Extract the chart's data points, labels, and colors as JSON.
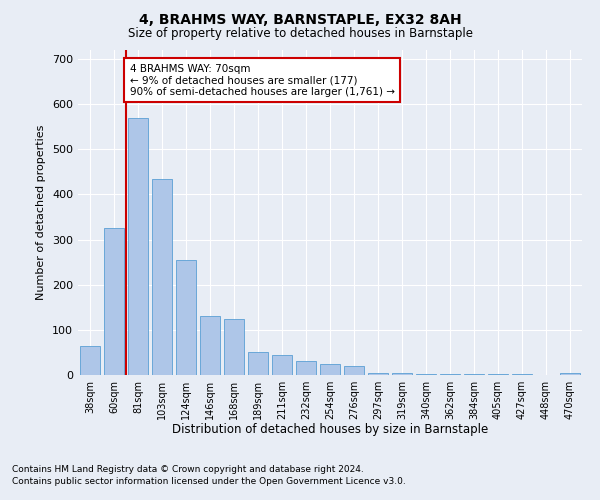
{
  "title1": "4, BRAHMS WAY, BARNSTAPLE, EX32 8AH",
  "title2": "Size of property relative to detached houses in Barnstaple",
  "xlabel": "Distribution of detached houses by size in Barnstaple",
  "ylabel": "Number of detached properties",
  "categories": [
    "38sqm",
    "60sqm",
    "81sqm",
    "103sqm",
    "124sqm",
    "146sqm",
    "168sqm",
    "189sqm",
    "211sqm",
    "232sqm",
    "254sqm",
    "276sqm",
    "297sqm",
    "319sqm",
    "340sqm",
    "362sqm",
    "384sqm",
    "405sqm",
    "427sqm",
    "448sqm",
    "470sqm"
  ],
  "values": [
    65,
    325,
    570,
    435,
    255,
    130,
    125,
    50,
    45,
    30,
    25,
    20,
    5,
    4,
    3,
    3,
    3,
    2,
    2,
    1,
    5
  ],
  "bar_color": "#aec6e8",
  "bar_edge_color": "#5a9fd4",
  "vline_color": "#cc0000",
  "annotation_text": "4 BRAHMS WAY: 70sqm\n← 9% of detached houses are smaller (177)\n90% of semi-detached houses are larger (1,761) →",
  "annotation_box_color": "#ffffff",
  "annotation_box_edge": "#cc0000",
  "ylim": [
    0,
    720
  ],
  "yticks": [
    0,
    100,
    200,
    300,
    400,
    500,
    600,
    700
  ],
  "footer1": "Contains HM Land Registry data © Crown copyright and database right 2024.",
  "footer2": "Contains public sector information licensed under the Open Government Licence v3.0.",
  "bg_color": "#e8edf5",
  "plot_bg_color": "#e8edf5"
}
